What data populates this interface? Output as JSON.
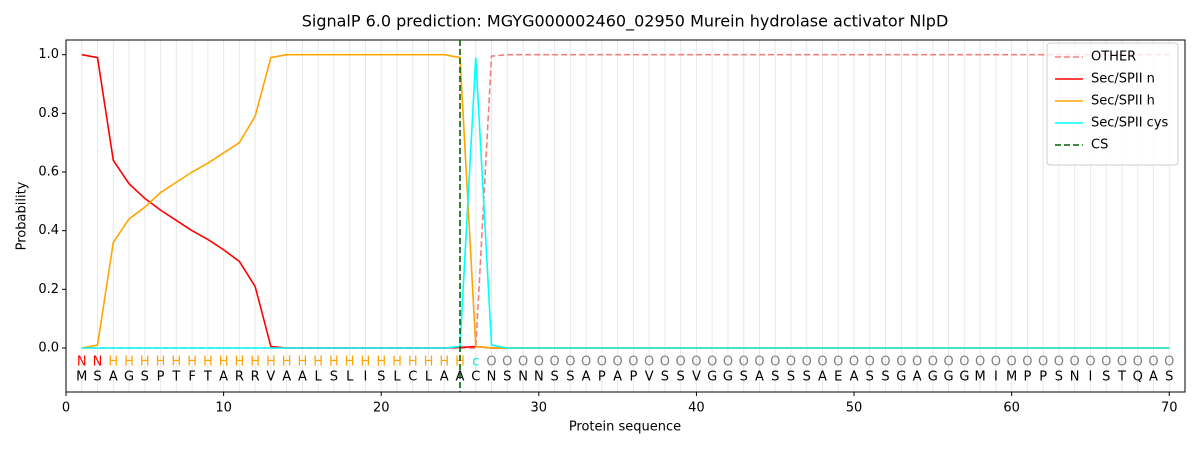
{
  "chart_data": {
    "type": "line",
    "title": "SignalP 6.0 prediction: MGYG000002460_02950 Murein hydrolase activator NlpD",
    "x_label": "Protein sequence",
    "y_label": "Probability",
    "x": [
      1,
      2,
      3,
      4,
      5,
      6,
      7,
      8,
      9,
      10,
      11,
      12,
      13,
      14,
      15,
      16,
      17,
      18,
      19,
      20,
      21,
      22,
      23,
      24,
      25,
      26,
      27,
      28,
      29,
      30,
      31,
      32,
      33,
      34,
      35,
      36,
      37,
      38,
      39,
      40,
      41,
      42,
      43,
      44,
      45,
      46,
      47,
      48,
      49,
      50,
      51,
      52,
      53,
      54,
      55,
      56,
      57,
      58,
      59,
      60,
      61,
      62,
      63,
      64,
      65,
      66,
      67,
      68,
      69,
      70
    ],
    "residues": [
      "M",
      "S",
      "A",
      "G",
      "S",
      "P",
      "T",
      "F",
      "T",
      "A",
      "R",
      "R",
      "V",
      "A",
      "A",
      "L",
      "S",
      "L",
      "I",
      "S",
      "L",
      "C",
      "L",
      "A",
      "A",
      "C",
      "N",
      "S",
      "N",
      "N",
      "S",
      "S",
      "A",
      "P",
      "A",
      "P",
      "V",
      "S",
      "S",
      "V",
      "G",
      "G",
      "S",
      "A",
      "S",
      "S",
      "S",
      "A",
      "E",
      "A",
      "S",
      "S",
      "G",
      "A",
      "G",
      "G",
      "G",
      "M",
      "I",
      "M",
      "P",
      "P",
      "S",
      "N",
      "I",
      "S",
      "T",
      "Q",
      "A",
      "S"
    ],
    "regions": [
      "N",
      "N",
      "H",
      "H",
      "H",
      "H",
      "H",
      "H",
      "H",
      "H",
      "H",
      "H",
      "H",
      "H",
      "H",
      "H",
      "H",
      "H",
      "H",
      "H",
      "H",
      "H",
      "H",
      "H",
      "H",
      "c",
      "O",
      "O",
      "O",
      "O",
      "O",
      "O",
      "O",
      "O",
      "O",
      "O",
      "O",
      "O",
      "O",
      "O",
      "O",
      "O",
      "O",
      "O",
      "O",
      "O",
      "O",
      "O",
      "O",
      "O",
      "O",
      "O",
      "O",
      "O",
      "O",
      "O",
      "O",
      "O",
      "O",
      "O",
      "O",
      "O",
      "O",
      "O",
      "O",
      "O",
      "O",
      "O",
      "O",
      "O"
    ],
    "region_colors": {
      "N": "#ff0000",
      "H": "#ffa500",
      "c": "#00e5e5",
      "O": "#808080"
    },
    "series": [
      {
        "name": "OTHER",
        "color": "#f08080",
        "linestyle": "dashed",
        "values": [
          0,
          0,
          0,
          0,
          0,
          0,
          0,
          0,
          0,
          0,
          0,
          0,
          0,
          0,
          0,
          0,
          0,
          0,
          0,
          0,
          0,
          0,
          0,
          0,
          0,
          0,
          0.995,
          1,
          1,
          1,
          1,
          1,
          1,
          1,
          1,
          1,
          1,
          1,
          1,
          1,
          1,
          1,
          1,
          1,
          1,
          1,
          1,
          1,
          1,
          1,
          1,
          1,
          1,
          1,
          1,
          1,
          1,
          1,
          1,
          1,
          1,
          1,
          1,
          1,
          1,
          1,
          1,
          1,
          1,
          1
        ]
      },
      {
        "name": "Sec/SPII n",
        "color": "#ff0000",
        "linestyle": "solid",
        "values": [
          1.0,
          0.99,
          0.64,
          0.56,
          0.51,
          0.47,
          0.435,
          0.4,
          0.37,
          0.335,
          0.295,
          0.21,
          0.005,
          0,
          0,
          0,
          0,
          0,
          0,
          0,
          0,
          0,
          0,
          0,
          0.002,
          0.005,
          0,
          0,
          0,
          0,
          0,
          0,
          0,
          0,
          0,
          0,
          0,
          0,
          0,
          0,
          0,
          0,
          0,
          0,
          0,
          0,
          0,
          0,
          0,
          0,
          0,
          0,
          0,
          0,
          0,
          0,
          0,
          0,
          0,
          0,
          0,
          0,
          0,
          0,
          0,
          0,
          0,
          0,
          0,
          0
        ]
      },
      {
        "name": "Sec/SPII h",
        "color": "#ffa500",
        "linestyle": "solid",
        "values": [
          0,
          0.01,
          0.36,
          0.44,
          0.48,
          0.53,
          0.565,
          0.6,
          0.63,
          0.665,
          0.7,
          0.79,
          0.99,
          1,
          1,
          1,
          1,
          1,
          1,
          1,
          1,
          1,
          1,
          1,
          0.99,
          0.005,
          0,
          0,
          0,
          0,
          0,
          0,
          0,
          0,
          0,
          0,
          0,
          0,
          0,
          0,
          0,
          0,
          0,
          0,
          0,
          0,
          0,
          0,
          0,
          0,
          0,
          0,
          0,
          0,
          0,
          0,
          0,
          0,
          0,
          0,
          0,
          0,
          0,
          0,
          0,
          0,
          0,
          0,
          0,
          0
        ]
      },
      {
        "name": "Sec/SPII cys",
        "color": "#00ffff",
        "linestyle": "solid",
        "values": [
          0,
          0,
          0,
          0,
          0,
          0,
          0,
          0,
          0,
          0,
          0,
          0,
          0,
          0,
          0,
          0,
          0,
          0,
          0,
          0,
          0,
          0,
          0,
          0,
          0.005,
          0.99,
          0.01,
          0,
          0,
          0,
          0,
          0,
          0,
          0,
          0,
          0,
          0,
          0,
          0,
          0,
          0,
          0,
          0,
          0,
          0,
          0,
          0,
          0,
          0,
          0,
          0,
          0,
          0,
          0,
          0,
          0,
          0,
          0,
          0,
          0,
          0,
          0,
          0,
          0,
          0,
          0,
          0,
          0,
          0,
          0
        ]
      }
    ],
    "cleavage_site": {
      "name": "CS",
      "color": "#006400",
      "x": 25
    },
    "xlim": [
      0,
      71
    ],
    "ylim": [
      -0.15,
      1.05
    ],
    "xticks": [
      0,
      10,
      20,
      30,
      40,
      50,
      60,
      70
    ],
    "yticks": [
      {
        "value": 0,
        "label": "0.0"
      },
      {
        "value": 0.2,
        "label": "0.2"
      },
      {
        "value": 0.4,
        "label": "0.4"
      },
      {
        "value": 0.6,
        "label": "0.6"
      },
      {
        "value": 0.8,
        "label": "0.8"
      },
      {
        "value": 1,
        "label": "1.0"
      }
    ],
    "grid": true,
    "legend": "upper right"
  }
}
